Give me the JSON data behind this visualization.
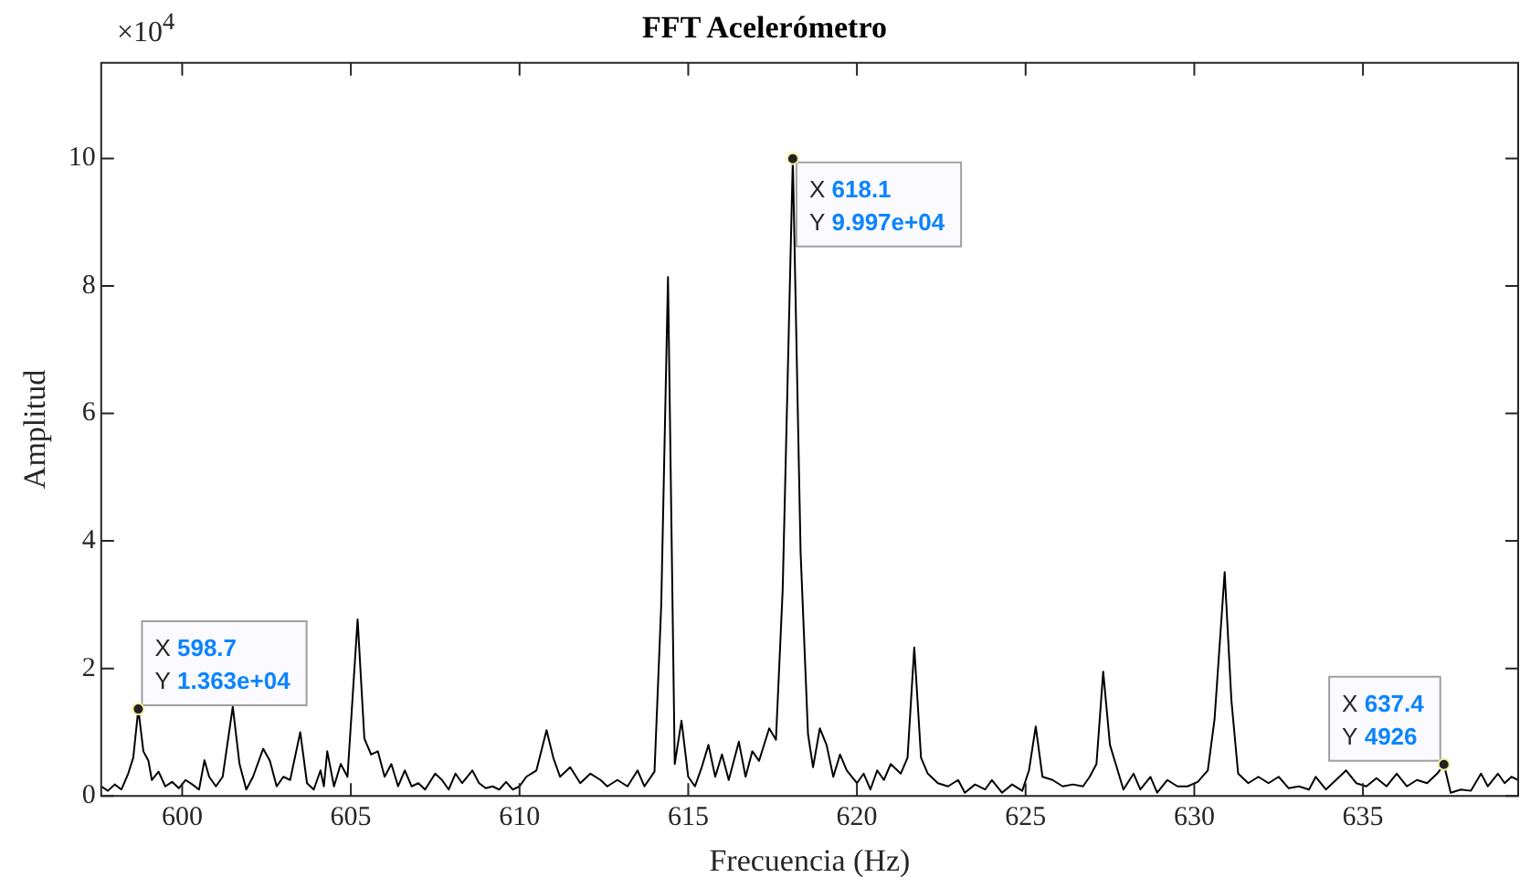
{
  "chart_data": {
    "type": "line",
    "title": "FFT Acelerómetro",
    "xlabel": "Frecuencia (Hz)",
    "ylabel": "Amplitud",
    "xlim": [
      597.6,
      639.6
    ],
    "xticks": [
      600,
      605,
      610,
      615,
      620,
      625,
      630,
      635
    ],
    "ylim": [
      0,
      11.5
    ],
    "yticks": [
      0,
      2,
      4,
      6,
      8,
      10
    ],
    "grid": false,
    "legend": false,
    "marker": "none",
    "line_style": "solid",
    "annotations": [
      "×10$^{4}$",
      {
        "text": "X 598.7\nY 1.363e+04",
        "x": 598.7,
        "y": 1.363
      },
      {
        "text": "X 618.1\nY 9.997e+04",
        "x": 618.1,
        "y": 9.997
      },
      {
        "text": "X 637.4\nY 4926",
        "x": 637.4,
        "y": 0.4926
      }
    ],
    "series": [
      {
        "color": "#000000",
        "x": [
          597.6,
          597.8,
          598.0,
          598.2,
          598.4,
          598.55,
          598.7,
          598.85,
          599.0,
          599.1,
          599.3,
          599.5,
          599.7,
          599.9,
          600.1,
          600.3,
          600.5,
          600.66,
          600.8,
          601.0,
          601.2,
          601.5,
          601.7,
          601.9,
          602.1,
          602.4,
          602.6,
          602.8,
          603.0,
          603.2,
          603.5,
          603.7,
          603.9,
          604.1,
          604.2,
          604.3,
          604.5,
          604.7,
          604.9,
          605.2,
          605.4,
          605.6,
          605.8,
          606.0,
          606.2,
          606.4,
          606.6,
          606.8,
          607.0,
          607.2,
          607.5,
          607.7,
          607.9,
          608.1,
          608.3,
          608.6,
          608.8,
          609.0,
          609.2,
          609.4,
          609.6,
          609.8,
          610.0,
          610.2,
          610.5,
          610.8,
          611.0,
          611.2,
          611.5,
          611.8,
          612.1,
          612.4,
          612.6,
          612.9,
          613.2,
          613.5,
          613.7,
          614.0,
          614.2,
          614.4,
          614.6,
          614.8,
          615.0,
          615.2,
          615.4,
          615.6,
          615.8,
          616.0,
          616.2,
          616.5,
          616.7,
          616.9,
          617.1,
          617.4,
          617.6,
          617.8,
          618.1,
          618.33,
          618.55,
          618.7,
          618.9,
          619.1,
          619.3,
          619.5,
          619.7,
          620.0,
          620.2,
          620.4,
          620.6,
          620.8,
          621.0,
          621.3,
          621.5,
          621.7,
          621.9,
          622.1,
          622.4,
          622.7,
          623.0,
          623.2,
          623.5,
          623.8,
          624.0,
          624.3,
          624.6,
          624.9,
          625.1,
          625.3,
          625.5,
          625.8,
          626.1,
          626.4,
          626.7,
          626.9,
          627.1,
          627.3,
          627.5,
          627.7,
          627.9,
          628.2,
          628.4,
          628.7,
          628.9,
          629.2,
          629.5,
          629.8,
          630.1,
          630.4,
          630.6,
          630.9,
          631.1,
          631.3,
          631.6,
          631.9,
          632.2,
          632.5,
          632.8,
          633.1,
          633.4,
          633.6,
          633.9,
          634.2,
          634.5,
          634.8,
          635.1,
          635.4,
          635.7,
          636.0,
          636.3,
          636.6,
          636.9,
          637.2,
          637.4,
          637.6,
          637.9,
          638.2,
          638.5,
          638.7,
          639.0,
          639.2,
          639.4,
          639.6
        ],
        "values": [
          0.15,
          0.08,
          0.18,
          0.1,
          0.35,
          0.6,
          1.363,
          0.7,
          0.55,
          0.25,
          0.38,
          0.15,
          0.22,
          0.12,
          0.25,
          0.18,
          0.1,
          0.56,
          0.3,
          0.15,
          0.3,
          1.4,
          0.5,
          0.1,
          0.3,
          0.74,
          0.55,
          0.15,
          0.3,
          0.25,
          1.0,
          0.2,
          0.1,
          0.4,
          0.15,
          0.7,
          0.15,
          0.5,
          0.3,
          2.77,
          0.9,
          0.65,
          0.7,
          0.3,
          0.5,
          0.15,
          0.4,
          0.15,
          0.2,
          0.1,
          0.35,
          0.25,
          0.1,
          0.35,
          0.2,
          0.4,
          0.2,
          0.12,
          0.15,
          0.1,
          0.22,
          0.1,
          0.15,
          0.3,
          0.4,
          1.03,
          0.6,
          0.3,
          0.45,
          0.2,
          0.35,
          0.25,
          0.15,
          0.25,
          0.15,
          0.4,
          0.15,
          0.38,
          3.0,
          8.14,
          0.5,
          1.18,
          0.3,
          0.15,
          0.45,
          0.8,
          0.3,
          0.65,
          0.25,
          0.85,
          0.3,
          0.7,
          0.55,
          1.06,
          0.88,
          3.24,
          9.997,
          3.83,
          0.97,
          0.45,
          1.06,
          0.8,
          0.3,
          0.65,
          0.4,
          0.2,
          0.35,
          0.1,
          0.4,
          0.25,
          0.5,
          0.35,
          0.6,
          2.33,
          0.6,
          0.35,
          0.2,
          0.15,
          0.25,
          0.05,
          0.18,
          0.1,
          0.25,
          0.05,
          0.18,
          0.08,
          0.4,
          1.09,
          0.3,
          0.25,
          0.15,
          0.18,
          0.15,
          0.3,
          0.5,
          1.95,
          0.8,
          0.45,
          0.1,
          0.35,
          0.1,
          0.3,
          0.05,
          0.25,
          0.15,
          0.15,
          0.22,
          0.4,
          1.2,
          3.51,
          1.5,
          0.35,
          0.2,
          0.3,
          0.2,
          0.3,
          0.12,
          0.15,
          0.1,
          0.3,
          0.1,
          0.25,
          0.4,
          0.2,
          0.15,
          0.28,
          0.15,
          0.35,
          0.15,
          0.25,
          0.2,
          0.35,
          0.4926,
          0.05,
          0.1,
          0.08,
          0.35,
          0.15,
          0.35,
          0.2,
          0.3,
          0.25
        ]
      }
    ]
  }
}
